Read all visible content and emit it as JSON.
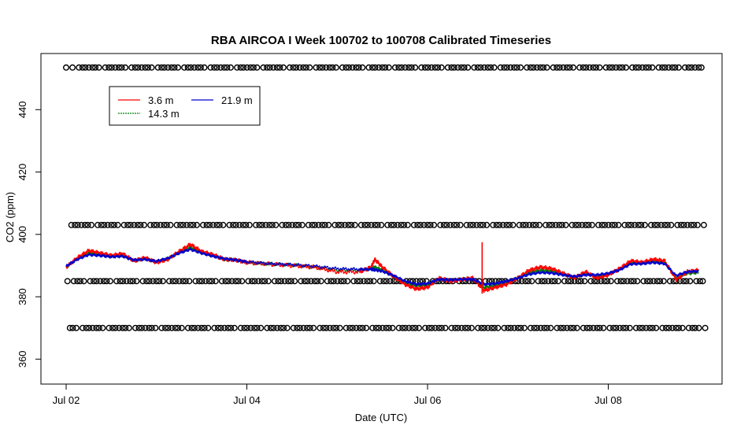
{
  "chart_data": {
    "type": "line",
    "title": "RBA AIRCOA I  Week 100702 to 100708  Calibrated Timeseries",
    "xlabel": "Date (UTC)",
    "ylabel": "CO2 (ppm)",
    "x_ticks": [
      "Jul 02",
      "Jul 04",
      "Jul 06",
      "Jul 08"
    ],
    "y_ticks": [
      360,
      380,
      400,
      420,
      440
    ],
    "ylim": [
      352,
      458
    ],
    "legend_position": "top-left",
    "grid": false,
    "series": [
      {
        "name": "3.6 m",
        "color": "#ff0000",
        "points": [
          [
            "Jul 02 00:00",
            389.5
          ],
          [
            "Jul 02 03:00",
            392.5
          ],
          [
            "Jul 02 06:00",
            394.8
          ],
          [
            "Jul 02 09:00",
            394.0
          ],
          [
            "Jul 02 12:00",
            393.2
          ],
          [
            "Jul 02 15:00",
            393.8
          ],
          [
            "Jul 02 18:00",
            391.5
          ],
          [
            "Jul 02 21:00",
            392.5
          ],
          [
            "Jul 03 00:00",
            391.0
          ],
          [
            "Jul 03 03:00",
            392.0
          ],
          [
            "Jul 03 06:00",
            394.5
          ],
          [
            "Jul 03 09:00",
            396.8
          ],
          [
            "Jul 03 12:00",
            394.5
          ],
          [
            "Jul 03 15:00",
            393.5
          ],
          [
            "Jul 03 18:00",
            392.0
          ],
          [
            "Jul 03 21:00",
            391.8
          ],
          [
            "Jul 04 00:00",
            391.0
          ],
          [
            "Jul 04 06:00",
            390.5
          ],
          [
            "Jul 04 12:00",
            390.0
          ],
          [
            "Jul 04 18:00",
            389.5
          ],
          [
            "Jul 05 00:00",
            388.0
          ],
          [
            "Jul 05 06:00",
            388.0
          ],
          [
            "Jul 05 09:00",
            389.5
          ],
          [
            "Jul 05 10:00",
            392.0
          ],
          [
            "Jul 05 12:00",
            389.5
          ],
          [
            "Jul 05 15:00",
            386.5
          ],
          [
            "Jul 05 18:00",
            384.0
          ],
          [
            "Jul 05 21:00",
            382.5
          ],
          [
            "Jul 06 00:00",
            383.0
          ],
          [
            "Jul 06 03:00",
            386.0
          ],
          [
            "Jul 06 06:00",
            385.0
          ],
          [
            "Jul 06 09:00",
            385.5
          ],
          [
            "Jul 06 12:00",
            386.0
          ],
          [
            "Jul 06 15:00",
            382.0
          ],
          [
            "Jul 06 18:00",
            383.0
          ],
          [
            "Jul 06 21:00",
            384.0
          ],
          [
            "Jul 07 00:00",
            386.0
          ],
          [
            "Jul 07 03:00",
            388.5
          ],
          [
            "Jul 07 06:00",
            389.5
          ],
          [
            "Jul 07 09:00",
            389.0
          ],
          [
            "Jul 07 12:00",
            387.5
          ],
          [
            "Jul 07 15:00",
            386.0
          ],
          [
            "Jul 07 18:00",
            388.0
          ],
          [
            "Jul 07 21:00",
            386.0
          ],
          [
            "Jul 08 00:00",
            387.0
          ],
          [
            "Jul 08 03:00",
            389.0
          ],
          [
            "Jul 08 06:00",
            391.5
          ],
          [
            "Jul 08 09:00",
            391.0
          ],
          [
            "Jul 08 12:00",
            392.0
          ],
          [
            "Jul 08 15:00",
            391.5
          ],
          [
            "Jul 08 18:00",
            385.5
          ],
          [
            "Jul 08 21:00",
            388.0
          ],
          [
            "Jul 09 00:00",
            388.5
          ]
        ]
      },
      {
        "name": "14.3 m",
        "color": "#008000",
        "points": [
          [
            "Jul 02 00:00",
            389.5
          ],
          [
            "Jul 02 03:00",
            392.3
          ],
          [
            "Jul 02 06:00",
            394.0
          ],
          [
            "Jul 02 09:00",
            393.6
          ],
          [
            "Jul 02 12:00",
            393.0
          ],
          [
            "Jul 02 15:00",
            393.2
          ],
          [
            "Jul 02 18:00",
            391.6
          ],
          [
            "Jul 02 21:00",
            392.2
          ],
          [
            "Jul 03 00:00",
            391.2
          ],
          [
            "Jul 03 03:00",
            392.2
          ],
          [
            "Jul 03 06:00",
            394.2
          ],
          [
            "Jul 03 09:00",
            395.8
          ],
          [
            "Jul 03 12:00",
            394.2
          ],
          [
            "Jul 03 15:00",
            393.2
          ],
          [
            "Jul 03 18:00",
            392.0
          ],
          [
            "Jul 03 21:00",
            391.8
          ],
          [
            "Jul 04 00:00",
            391.0
          ],
          [
            "Jul 04 06:00",
            390.5
          ],
          [
            "Jul 04 12:00",
            390.2
          ],
          [
            "Jul 04 18:00",
            389.5
          ],
          [
            "Jul 05 00:00",
            388.5
          ],
          [
            "Jul 05 06:00",
            388.5
          ],
          [
            "Jul 05 09:00",
            389.0
          ],
          [
            "Jul 05 10:00",
            389.5
          ],
          [
            "Jul 05 12:00",
            388.5
          ],
          [
            "Jul 05 15:00",
            386.5
          ],
          [
            "Jul 05 18:00",
            384.5
          ],
          [
            "Jul 05 21:00",
            383.5
          ],
          [
            "Jul 06 00:00",
            383.8
          ],
          [
            "Jul 06 03:00",
            385.8
          ],
          [
            "Jul 06 06:00",
            385.2
          ],
          [
            "Jul 06 09:00",
            385.6
          ],
          [
            "Jul 06 12:00",
            385.8
          ],
          [
            "Jul 06 15:00",
            383.0
          ],
          [
            "Jul 06 18:00",
            383.5
          ],
          [
            "Jul 06 21:00",
            384.5
          ],
          [
            "Jul 07 00:00",
            386.0
          ],
          [
            "Jul 07 03:00",
            387.8
          ],
          [
            "Jul 07 06:00",
            388.5
          ],
          [
            "Jul 07 09:00",
            388.2
          ],
          [
            "Jul 07 12:00",
            387.2
          ],
          [
            "Jul 07 15:00",
            386.2
          ],
          [
            "Jul 07 18:00",
            387.5
          ],
          [
            "Jul 07 21:00",
            386.5
          ],
          [
            "Jul 08 00:00",
            387.2
          ],
          [
            "Jul 08 03:00",
            388.8
          ],
          [
            "Jul 08 06:00",
            391.0
          ],
          [
            "Jul 08 09:00",
            390.8
          ],
          [
            "Jul 08 12:00",
            391.5
          ],
          [
            "Jul 08 15:00",
            391.0
          ],
          [
            "Jul 08 18:00",
            386.0
          ],
          [
            "Jul 08 21:00",
            387.5
          ],
          [
            "Jul 09 00:00",
            387.8
          ]
        ]
      },
      {
        "name": "21.9 m",
        "color": "#0000cc",
        "points": [
          [
            "Jul 02 00:00",
            389.8
          ],
          [
            "Jul 02 03:00",
            392.0
          ],
          [
            "Jul 02 06:00",
            393.5
          ],
          [
            "Jul 02 09:00",
            393.2
          ],
          [
            "Jul 02 12:00",
            392.8
          ],
          [
            "Jul 02 15:00",
            393.0
          ],
          [
            "Jul 02 18:00",
            391.8
          ],
          [
            "Jul 02 21:00",
            392.0
          ],
          [
            "Jul 03 00:00",
            391.4
          ],
          [
            "Jul 03 03:00",
            392.3
          ],
          [
            "Jul 03 06:00",
            394.0
          ],
          [
            "Jul 03 09:00",
            395.2
          ],
          [
            "Jul 03 12:00",
            394.0
          ],
          [
            "Jul 03 15:00",
            393.0
          ],
          [
            "Jul 03 18:00",
            392.2
          ],
          [
            "Jul 03 21:00",
            391.8
          ],
          [
            "Jul 04 00:00",
            391.2
          ],
          [
            "Jul 04 06:00",
            390.6
          ],
          [
            "Jul 04 12:00",
            390.3
          ],
          [
            "Jul 04 18:00",
            389.8
          ],
          [
            "Jul 05 00:00",
            389.0
          ],
          [
            "Jul 05 06:00",
            388.8
          ],
          [
            "Jul 05 09:00",
            388.8
          ],
          [
            "Jul 05 10:00",
            388.6
          ],
          [
            "Jul 05 12:00",
            388.2
          ],
          [
            "Jul 05 15:00",
            386.8
          ],
          [
            "Jul 05 18:00",
            385.0
          ],
          [
            "Jul 05 21:00",
            384.0
          ],
          [
            "Jul 06 00:00",
            384.2
          ],
          [
            "Jul 06 03:00",
            385.6
          ],
          [
            "Jul 06 06:00",
            385.4
          ],
          [
            "Jul 06 09:00",
            385.6
          ],
          [
            "Jul 06 12:00",
            385.6
          ],
          [
            "Jul 06 15:00",
            384.0
          ],
          [
            "Jul 06 18:00",
            384.2
          ],
          [
            "Jul 06 21:00",
            385.0
          ],
          [
            "Jul 07 00:00",
            386.0
          ],
          [
            "Jul 07 03:00",
            387.2
          ],
          [
            "Jul 07 06:00",
            387.8
          ],
          [
            "Jul 07 09:00",
            387.6
          ],
          [
            "Jul 07 12:00",
            387.0
          ],
          [
            "Jul 07 15:00",
            386.5
          ],
          [
            "Jul 07 18:00",
            387.0
          ],
          [
            "Jul 07 21:00",
            387.0
          ],
          [
            "Jul 08 00:00",
            387.5
          ],
          [
            "Jul 08 03:00",
            388.6
          ],
          [
            "Jul 08 06:00",
            390.5
          ],
          [
            "Jul 08 09:00",
            390.6
          ],
          [
            "Jul 08 12:00",
            391.0
          ],
          [
            "Jul 08 15:00",
            390.6
          ],
          [
            "Jul 08 18:00",
            386.8
          ],
          [
            "Jul 08 21:00",
            388.0
          ],
          [
            "Jul 09 00:00",
            388.2
          ]
        ]
      }
    ],
    "spikes": [
      {
        "series": "3.6 m",
        "x": "Jul 06 14:30",
        "low": 381.0,
        "high": 397.5
      }
    ],
    "reference_markers": {
      "marker": "circle",
      "levels": [
        453.5,
        403.0,
        385.0,
        370.0
      ],
      "x_start": "Jul 02 00:00",
      "x_end": "Jul 09 00:00",
      "spacing_hours": 1
    }
  }
}
